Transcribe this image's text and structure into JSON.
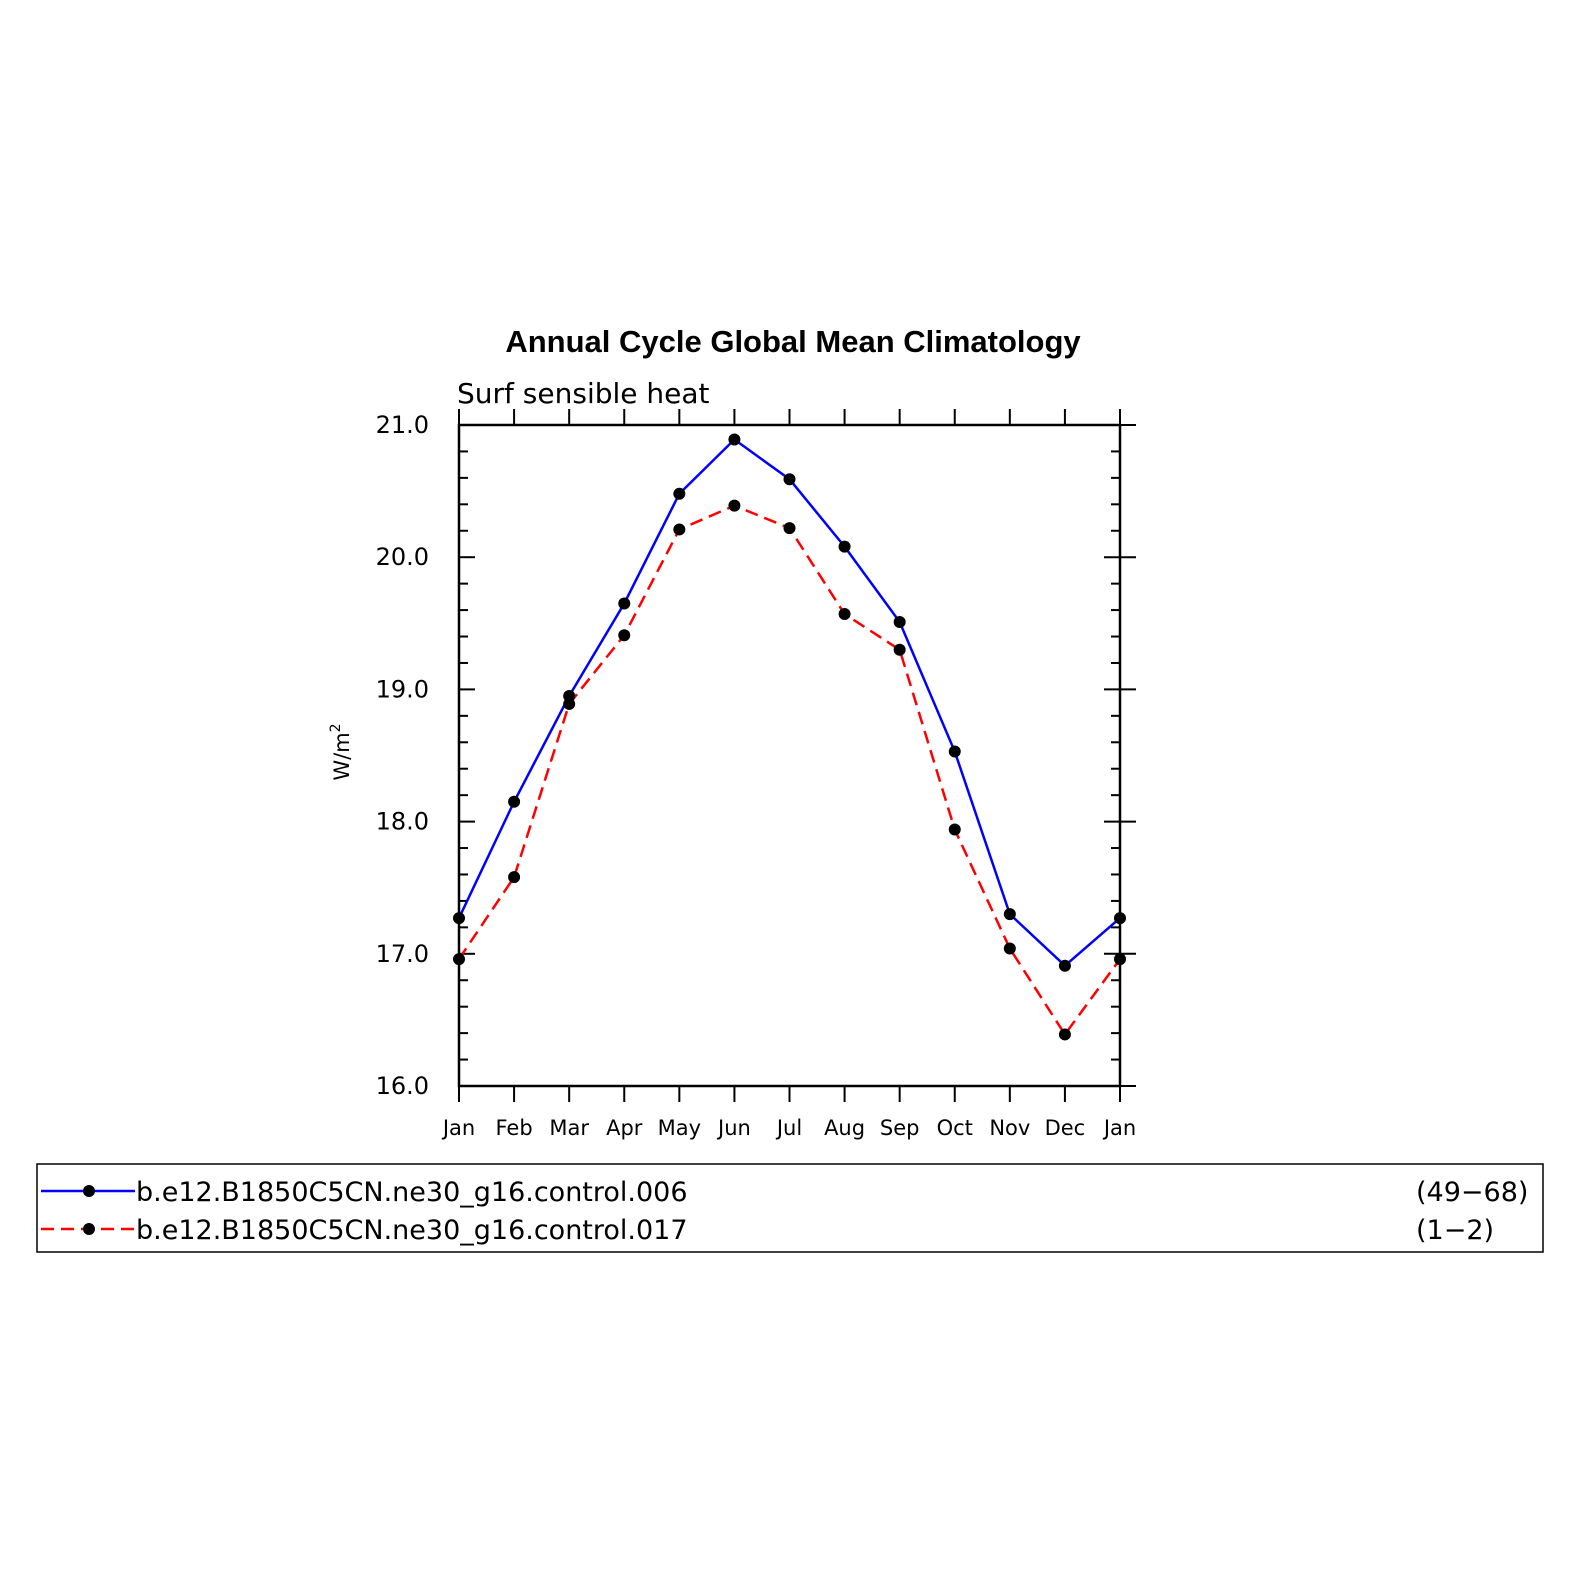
{
  "chart_data": {
    "type": "line",
    "title": "Annual Cycle Global Mean Climatology",
    "subtitle": "Surf sensible heat",
    "ylabel": "W/m",
    "ylabel_superscript": "2",
    "categories": [
      "Jan",
      "Feb",
      "Mar",
      "Apr",
      "May",
      "Jun",
      "Jul",
      "Aug",
      "Sep",
      "Oct",
      "Nov",
      "Dec",
      "Jan"
    ],
    "ylim": [
      16.0,
      21.0
    ],
    "yticks": [
      "16.0",
      "17.0",
      "18.0",
      "19.0",
      "20.0",
      "21.0"
    ],
    "grid": false,
    "legend_position": "bottom",
    "series": [
      {
        "name": "b.e12.B1850C5CN.ne30_g16.control.006",
        "years": "(49−68)",
        "color": "#0000ff",
        "dash": "solid",
        "values": [
          17.27,
          18.15,
          18.95,
          19.65,
          20.48,
          20.89,
          20.59,
          20.08,
          19.51,
          18.53,
          17.3,
          16.91,
          17.27
        ]
      },
      {
        "name": "b.e12.B1850C5CN.ne30_g16.control.017",
        "years": "(1−2)",
        "color": "#ff0000",
        "dash": "dashed",
        "values": [
          16.96,
          17.58,
          18.89,
          19.41,
          20.21,
          20.39,
          20.22,
          19.57,
          19.3,
          17.94,
          17.04,
          16.39,
          16.96
        ]
      }
    ]
  }
}
